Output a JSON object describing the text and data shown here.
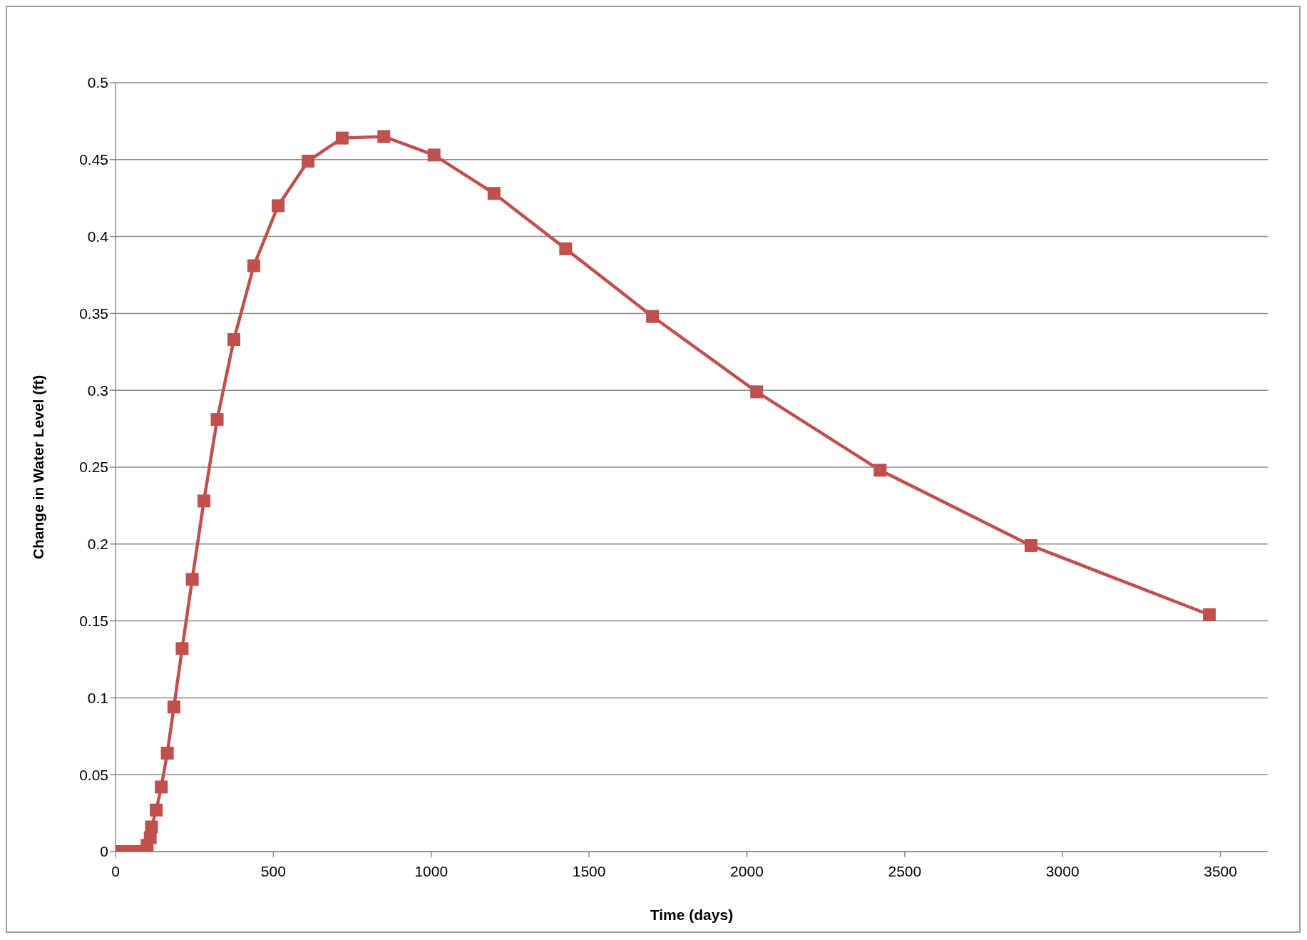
{
  "chart_data": {
    "type": "line",
    "xlabel": "Time (days)",
    "ylabel": "Change in Water Level (ft)",
    "x": [
      0,
      10,
      20,
      30,
      40,
      50,
      60,
      70,
      80,
      100,
      110,
      114,
      129,
      145,
      164,
      185,
      211,
      243,
      280,
      322,
      375,
      438,
      515,
      610,
      718,
      850,
      1009,
      1199,
      1426,
      1701,
      2031,
      2422,
      2900,
      3465
    ],
    "series": [
      {
        "color": "#c0504d",
        "values": [
          0,
          0,
          0,
          0,
          0,
          0,
          0,
          0,
          0,
          0.004,
          0.009,
          0.016,
          0.027,
          0.042,
          0.064,
          0.094,
          0.132,
          0.177,
          0.228,
          0.281,
          0.333,
          0.381,
          0.42,
          0.449,
          0.464,
          0.465,
          0.453,
          0.428,
          0.392,
          0.348,
          0.299,
          0.248,
          0.199,
          0.154
        ]
      }
    ],
    "xlim": [
      0,
      3650
    ],
    "xticks": [
      0,
      500,
      1000,
      1500,
      2000,
      2500,
      3000,
      3500
    ],
    "ylim": [
      0,
      0.5
    ],
    "yticks": [
      0,
      0.05,
      0.1,
      0.15,
      0.2,
      0.25,
      0.3,
      0.35,
      0.4,
      0.45,
      0.5
    ],
    "grid": "y",
    "legend": false,
    "marker": "square",
    "line_style": "solid"
  }
}
